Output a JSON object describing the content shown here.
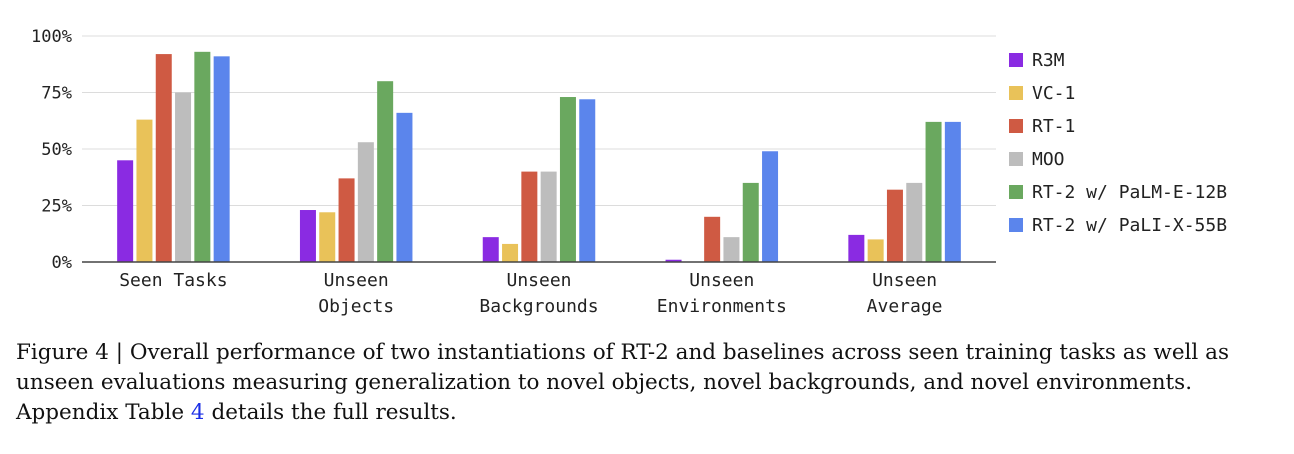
{
  "chart_data": {
    "type": "bar",
    "categories": [
      [
        "Seen Tasks"
      ],
      [
        "Unseen",
        "Objects"
      ],
      [
        "Unseen",
        "Backgrounds"
      ],
      [
        "Unseen",
        "Environments"
      ],
      [
        "Unseen",
        "Average"
      ]
    ],
    "series": [
      {
        "name": "R3M",
        "color": "#8a2be2",
        "values": [
          45,
          23,
          11,
          1,
          12
        ]
      },
      {
        "name": "VC-1",
        "color": "#e9c259",
        "values": [
          63,
          22,
          8,
          0,
          10
        ]
      },
      {
        "name": "RT-1",
        "color": "#cf5a43",
        "values": [
          92,
          37,
          40,
          20,
          32
        ]
      },
      {
        "name": "MOO",
        "color": "#bdbdbd",
        "values": [
          75,
          53,
          40,
          11,
          35
        ]
      },
      {
        "name": "RT-2 w/ PaLM-E-12B",
        "color": "#6aa85f",
        "values": [
          93,
          80,
          73,
          35,
          62
        ]
      },
      {
        "name": "RT-2 w/ PaLI-X-55B",
        "color": "#5b85ec",
        "values": [
          91,
          66,
          72,
          49,
          62
        ]
      }
    ],
    "ylim": [
      0,
      100
    ],
    "yticks": [
      "0%",
      "25%",
      "50%",
      "75%",
      "100%"
    ],
    "ytick_values": [
      0,
      25,
      50,
      75,
      100
    ],
    "grid": true,
    "legend_position": "right"
  },
  "caption": {
    "prefix": "Figure 4 | Overall performance of two instantiations of RT-2 and baselines across seen training tasks as well as unseen evaluations measuring generalization to novel objects, novel backgrounds, and novel environments. Appendix Table ",
    "link_text": "4",
    "suffix": " details the full results."
  }
}
